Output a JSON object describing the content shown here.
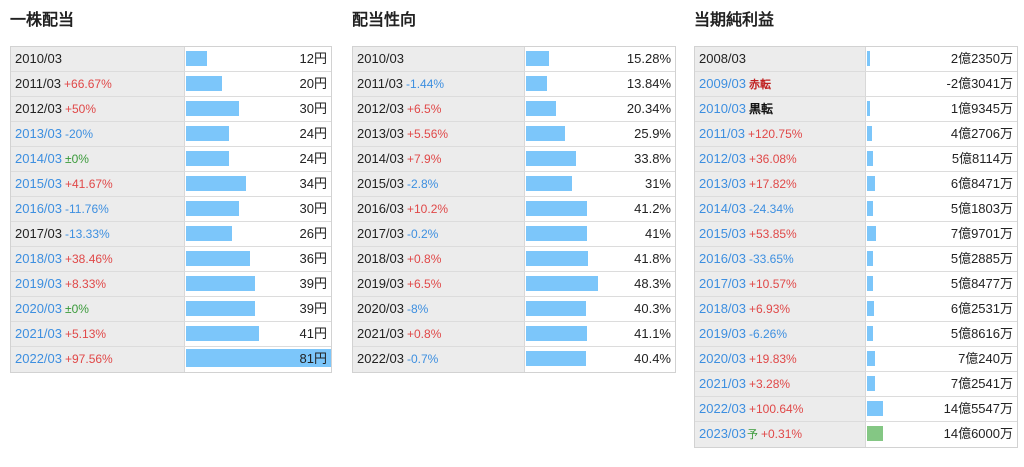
{
  "dividend": {
    "title": "一株配当",
    "rows": [
      {
        "year": "2010/03",
        "change": "",
        "dir": "",
        "value": "12円",
        "num": 12,
        "blue": false
      },
      {
        "year": "2011/03",
        "change": "+66.67%",
        "dir": "up",
        "value": "20円",
        "num": 20,
        "blue": false
      },
      {
        "year": "2012/03",
        "change": "+50%",
        "dir": "up",
        "value": "30円",
        "num": 30,
        "blue": false
      },
      {
        "year": "2013/03",
        "change": "-20%",
        "dir": "down",
        "value": "24円",
        "num": 24,
        "blue": true
      },
      {
        "year": "2014/03",
        "change": "±0%",
        "dir": "flat",
        "value": "24円",
        "num": 24,
        "blue": true
      },
      {
        "year": "2015/03",
        "change": "+41.67%",
        "dir": "up",
        "value": "34円",
        "num": 34,
        "blue": true
      },
      {
        "year": "2016/03",
        "change": "-11.76%",
        "dir": "down",
        "value": "30円",
        "num": 30,
        "blue": true
      },
      {
        "year": "2017/03",
        "change": "-13.33%",
        "dir": "down",
        "value": "26円",
        "num": 26,
        "blue": false
      },
      {
        "year": "2018/03",
        "change": "+38.46%",
        "dir": "up",
        "value": "36円",
        "num": 36,
        "blue": true
      },
      {
        "year": "2019/03",
        "change": "+8.33%",
        "dir": "up",
        "value": "39円",
        "num": 39,
        "blue": true
      },
      {
        "year": "2020/03",
        "change": "±0%",
        "dir": "flat",
        "value": "39円",
        "num": 39,
        "blue": true
      },
      {
        "year": "2021/03",
        "change": "+5.13%",
        "dir": "up",
        "value": "41円",
        "num": 41,
        "blue": true
      },
      {
        "year": "2022/03",
        "change": "+97.56%",
        "dir": "up",
        "value": "81円",
        "num": 81,
        "blue": true
      }
    ]
  },
  "payout": {
    "title": "配当性向",
    "rows": [
      {
        "year": "2010/03",
        "change": "",
        "dir": "",
        "value": "15.28%",
        "num": 15.28,
        "blue": false
      },
      {
        "year": "2011/03",
        "change": "-1.44%",
        "dir": "down",
        "value": "13.84%",
        "num": 13.84,
        "blue": false
      },
      {
        "year": "2012/03",
        "change": "+6.5%",
        "dir": "up",
        "value": "20.34%",
        "num": 20.34,
        "blue": false
      },
      {
        "year": "2013/03",
        "change": "+5.56%",
        "dir": "up",
        "value": "25.9%",
        "num": 25.9,
        "blue": false
      },
      {
        "year": "2014/03",
        "change": "+7.9%",
        "dir": "up",
        "value": "33.8%",
        "num": 33.8,
        "blue": false
      },
      {
        "year": "2015/03",
        "change": "-2.8%",
        "dir": "down",
        "value": "31%",
        "num": 31,
        "blue": false
      },
      {
        "year": "2016/03",
        "change": "+10.2%",
        "dir": "up",
        "value": "41.2%",
        "num": 41.2,
        "blue": false
      },
      {
        "year": "2017/03",
        "change": "-0.2%",
        "dir": "down",
        "value": "41%",
        "num": 41,
        "blue": false
      },
      {
        "year": "2018/03",
        "change": "+0.8%",
        "dir": "up",
        "value": "41.8%",
        "num": 41.8,
        "blue": false
      },
      {
        "year": "2019/03",
        "change": "+6.5%",
        "dir": "up",
        "value": "48.3%",
        "num": 48.3,
        "blue": false
      },
      {
        "year": "2020/03",
        "change": "-8%",
        "dir": "down",
        "value": "40.3%",
        "num": 40.3,
        "blue": false
      },
      {
        "year": "2021/03",
        "change": "+0.8%",
        "dir": "up",
        "value": "41.1%",
        "num": 41.1,
        "blue": false
      },
      {
        "year": "2022/03",
        "change": "-0.7%",
        "dir": "down",
        "value": "40.4%",
        "num": 40.4,
        "blue": false
      }
    ]
  },
  "profit": {
    "title": "当期純利益",
    "rows": [
      {
        "year": "2008/03",
        "change": "",
        "dir": "",
        "tag": "",
        "tagType": "",
        "value": "2億2350万",
        "num": 2.235,
        "blue": false
      },
      {
        "year": "2009/03",
        "change": "",
        "dir": "",
        "tag": "赤転",
        "tagType": "red",
        "value": "-2億3041万",
        "num": -2.3041,
        "blue": true
      },
      {
        "year": "2010/03",
        "change": "",
        "dir": "",
        "tag": "黒転",
        "tagType": "black",
        "value": "1億9345万",
        "num": 1.9345,
        "blue": true
      },
      {
        "year": "2011/03",
        "change": "+120.75%",
        "dir": "up",
        "tag": "",
        "tagType": "",
        "value": "4億2706万",
        "num": 4.2706,
        "blue": true
      },
      {
        "year": "2012/03",
        "change": "+36.08%",
        "dir": "up",
        "tag": "",
        "tagType": "",
        "value": "5億8114万",
        "num": 5.8114,
        "blue": true
      },
      {
        "year": "2013/03",
        "change": "+17.82%",
        "dir": "up",
        "tag": "",
        "tagType": "",
        "value": "6億8471万",
        "num": 6.8471,
        "blue": true
      },
      {
        "year": "2014/03",
        "change": "-24.34%",
        "dir": "down",
        "tag": "",
        "tagType": "",
        "value": "5億1803万",
        "num": 5.1803,
        "blue": true
      },
      {
        "year": "2015/03",
        "change": "+53.85%",
        "dir": "up",
        "tag": "",
        "tagType": "",
        "value": "7億9701万",
        "num": 7.9701,
        "blue": true
      },
      {
        "year": "2016/03",
        "change": "-33.65%",
        "dir": "down",
        "tag": "",
        "tagType": "",
        "value": "5億2885万",
        "num": 5.2885,
        "blue": true
      },
      {
        "year": "2017/03",
        "change": "+10.57%",
        "dir": "up",
        "tag": "",
        "tagType": "",
        "value": "5億8477万",
        "num": 5.8477,
        "blue": true
      },
      {
        "year": "2018/03",
        "change": "+6.93%",
        "dir": "up",
        "tag": "",
        "tagType": "",
        "value": "6億2531万",
        "num": 6.2531,
        "blue": true
      },
      {
        "year": "2019/03",
        "change": "-6.26%",
        "dir": "down",
        "tag": "",
        "tagType": "",
        "value": "5億8616万",
        "num": 5.8616,
        "blue": true
      },
      {
        "year": "2020/03",
        "change": "+19.83%",
        "dir": "up",
        "tag": "",
        "tagType": "",
        "value": "7億240万",
        "num": 7.024,
        "blue": true
      },
      {
        "year": "2021/03",
        "change": "+3.28%",
        "dir": "up",
        "tag": "",
        "tagType": "",
        "value": "7億2541万",
        "num": 7.2541,
        "blue": true
      },
      {
        "year": "2022/03",
        "change": "+100.64%",
        "dir": "up",
        "tag": "",
        "tagType": "",
        "value": "14億5547万",
        "num": 14.5547,
        "blue": true
      },
      {
        "year": "2023/03",
        "change": "+0.31%",
        "dir": "up",
        "tag": "予",
        "tagType": "green",
        "value": "14億6000万",
        "num": 14.6,
        "blue": true,
        "forecast": true
      }
    ]
  },
  "colors": {
    "bar": "#7cc6fa",
    "forecast_bar": "#84c784",
    "up": "#e04848",
    "down": "#3d8fe0",
    "flat": "#3a9a3a"
  }
}
